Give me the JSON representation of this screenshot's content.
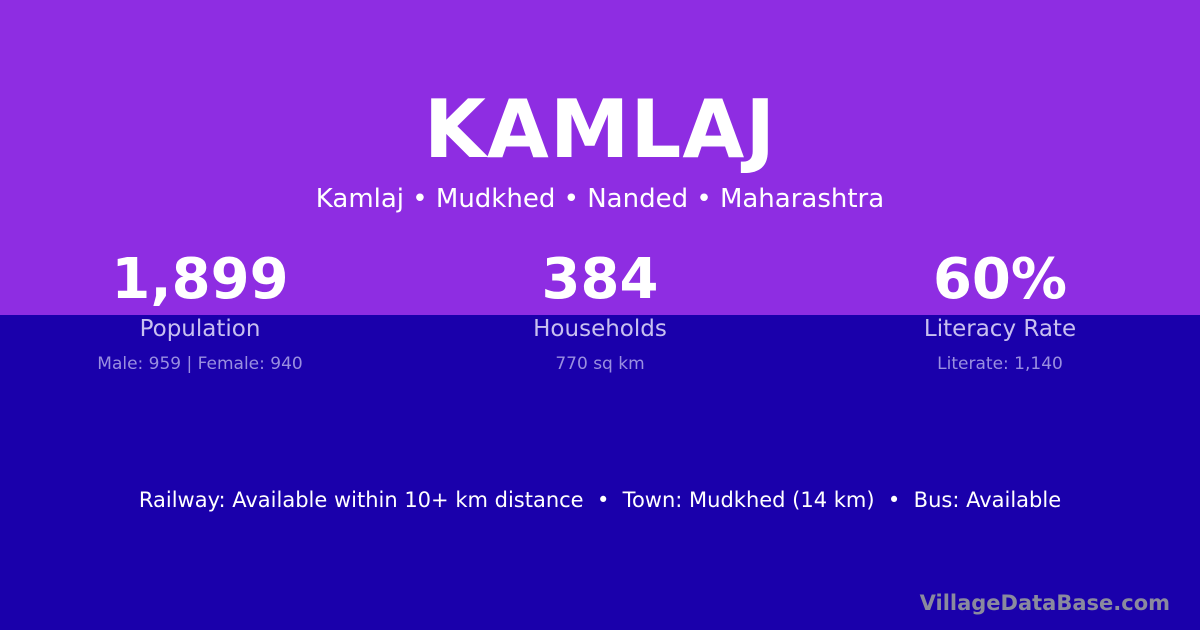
{
  "colors": {
    "top": "#8e2de2",
    "bottom": "#1a00ab"
  },
  "title": "KAMLAJ",
  "subtitle": "Kamlaj • Mudkhed • Nanded • Maharashtra",
  "stats": [
    {
      "value": "1,899",
      "label": "Population",
      "sub": "Male: 959 | Female: 940"
    },
    {
      "value": "384",
      "label": "Households",
      "sub": "770 sq km"
    },
    {
      "value": "60%",
      "label": "Literacy Rate",
      "sub": "Literate: 1,140"
    }
  ],
  "info": "Railway: Available within 10+ km distance  •  Town: Mudkhed (14 km)  •  Bus: Available",
  "brand": "VillageDataBase.com"
}
